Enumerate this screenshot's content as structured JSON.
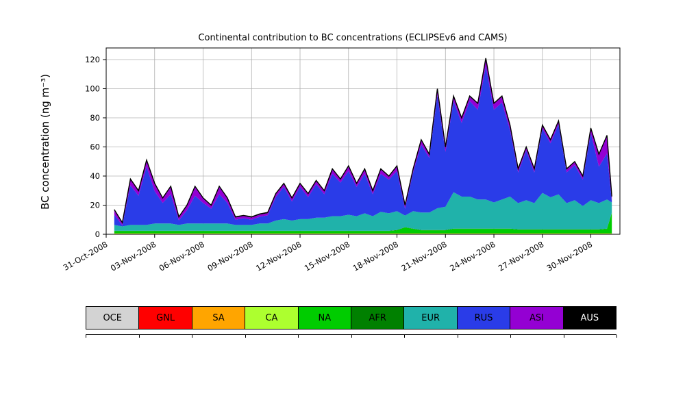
{
  "chart_data": {
    "type": "area",
    "stacked": true,
    "title": "Continental contribution to BC concentrations (ECLIPSEv6 and CAMS)",
    "xlabel": "",
    "ylabel": "BC concentration (ng m⁻³)",
    "xlim": [
      0,
      31.8
    ],
    "ylim": [
      0,
      128
    ],
    "x_units": "days_since_31-Oct-2008",
    "grid": true,
    "grid_color": "#b0b0b0",
    "outline_color": "#000000",
    "y_ticks": [
      0,
      20,
      40,
      60,
      80,
      100,
      120
    ],
    "x_ticks": {
      "days": [
        0,
        3,
        6,
        9,
        12,
        15,
        18,
        21,
        24,
        27,
        30
      ],
      "labels": [
        "31-Oct-2008",
        "03-Nov-2008",
        "06-Nov-2008",
        "09-Nov-2008",
        "12-Nov-2008",
        "15-Nov-2008",
        "18-Nov-2008",
        "21-Nov-2008",
        "24-Nov-2008",
        "27-Nov-2008",
        "30-Nov-2008"
      ]
    },
    "x": [
      0.5,
      1,
      1.5,
      2,
      2.5,
      3,
      3.5,
      4,
      4.5,
      5,
      5.5,
      6,
      6.5,
      7,
      7.5,
      8,
      8.5,
      9,
      9.5,
      10,
      10.5,
      11,
      11.5,
      12,
      12.5,
      13,
      13.5,
      14,
      14.5,
      15,
      15.5,
      16,
      16.5,
      17,
      17.5,
      18,
      18.5,
      19,
      19.5,
      20,
      20.5,
      21,
      21.5,
      22,
      22.5,
      23,
      23.5,
      24,
      24.5,
      25,
      25.5,
      26,
      26.5,
      27,
      27.5,
      28,
      28.5,
      29,
      29.5,
      30,
      30.5,
      31,
      31.3
    ],
    "series": [
      {
        "name": "OCE",
        "color": "#d3d3d3",
        "values": 0.2
      },
      {
        "name": "GNL",
        "color": "#ff0000",
        "values": 0.1
      },
      {
        "name": "SA",
        "color": "#ffa500",
        "values": 0.1
      },
      {
        "name": "CA",
        "color": "#adff2f",
        "values": 0.3
      },
      {
        "name": "NA",
        "color": "#00cc00",
        "values": [
          1.5,
          1.5,
          1.5,
          1.5,
          1.5,
          1.5,
          1.5,
          1.5,
          1.5,
          1.5,
          1.5,
          1.5,
          1.5,
          1.5,
          1.5,
          1.5,
          1.5,
          1.5,
          1.5,
          1.5,
          1.5,
          1.5,
          1.5,
          1.5,
          1.5,
          1.5,
          1.5,
          1.5,
          1.5,
          1.5,
          1.5,
          1.5,
          1.5,
          1.5,
          1.5,
          2,
          4,
          3,
          2,
          2,
          2,
          2,
          3,
          3,
          3,
          3,
          3,
          3,
          3,
          3,
          2.5,
          2.5,
          2.5,
          2.5,
          2.5,
          2.5,
          2.5,
          2.5,
          2.5,
          2.5,
          2.5,
          3,
          14
        ]
      },
      {
        "name": "AFR",
        "color": "#008000",
        "values": 0.2
      },
      {
        "name": "EUR",
        "color": "#20b2aa",
        "values": [
          4,
          3,
          4,
          4,
          4,
          5,
          5,
          5,
          4,
          5,
          5,
          5,
          5,
          5,
          5,
          4,
          4,
          4,
          5,
          5,
          7,
          8,
          7,
          8,
          8,
          9,
          9,
          10,
          10,
          11,
          10,
          12,
          10,
          13,
          12,
          13,
          8,
          12,
          12,
          12,
          15,
          16,
          25,
          22,
          22,
          20,
          20,
          18,
          20,
          22,
          18,
          20,
          18,
          25,
          22,
          24,
          18,
          20,
          16,
          20,
          18,
          20,
          7
        ]
      },
      {
        "name": "RUS",
        "color": "#2a3ce8",
        "values": [
          7.1,
          0.6,
          27.1,
          20.1,
          40.1,
          22.1,
          14.1,
          20.1,
          3.1,
          9.1,
          19.1,
          14.1,
          10.1,
          20.1,
          14.1,
          3.6,
          4.6,
          3.6,
          4.6,
          5.6,
          16.1,
          22.1,
          13.1,
          22.1,
          15.1,
          23.1,
          16.1,
          29.1,
          23.1,
          30.1,
          20.1,
          27.1,
          15.1,
          26.1,
          23.1,
          27.6,
          4.6,
          26.6,
          46.6,
          37.6,
          77.6,
          37.6,
          62.6,
          50.6,
          65.6,
          61.6,
          91.6,
          63.6,
          66.6,
          45.6,
          21.1,
          34.1,
          21.1,
          44.1,
          37.1,
          48.1,
          21.1,
          24.1,
          18.1,
          46.1,
          25.1,
          31.6,
          0.6
        ]
      },
      {
        "name": "ASI",
        "color": "#9400d3",
        "values": [
          3,
          1.5,
          4,
          3,
          4,
          5,
          3,
          5,
          2,
          3,
          6,
          3,
          2,
          5,
          3,
          1.5,
          1.5,
          1.5,
          1.5,
          1.5,
          2,
          2,
          2,
          2,
          2,
          2,
          2,
          3,
          2,
          3,
          2,
          3,
          2,
          3,
          2,
          3,
          2,
          2,
          3,
          2,
          4,
          3,
          3,
          3,
          3,
          4,
          5,
          4,
          4,
          3,
          2,
          2,
          2,
          2,
          2,
          2,
          2,
          2,
          2,
          3,
          8,
          12,
          3
        ]
      },
      {
        "name": "AUS",
        "color": "#000000",
        "values": 0.5
      }
    ]
  },
  "legend": {
    "items": [
      {
        "label": "OCE",
        "color": "#d3d3d3",
        "text": "#000000"
      },
      {
        "label": "GNL",
        "color": "#ff0000",
        "text": "#000000"
      },
      {
        "label": "SA",
        "color": "#ffa500",
        "text": "#000000"
      },
      {
        "label": "CA",
        "color": "#adff2f",
        "text": "#000000"
      },
      {
        "label": "NA",
        "color": "#00cc00",
        "text": "#000000"
      },
      {
        "label": "AFR",
        "color": "#008000",
        "text": "#000000"
      },
      {
        "label": "EUR",
        "color": "#20b2aa",
        "text": "#000000"
      },
      {
        "label": "RUS",
        "color": "#2a3ce8",
        "text": "#000000"
      },
      {
        "label": "ASI",
        "color": "#9400d3",
        "text": "#000000"
      },
      {
        "label": "AUS",
        "color": "#000000",
        "text": "#ffffff"
      }
    ]
  }
}
